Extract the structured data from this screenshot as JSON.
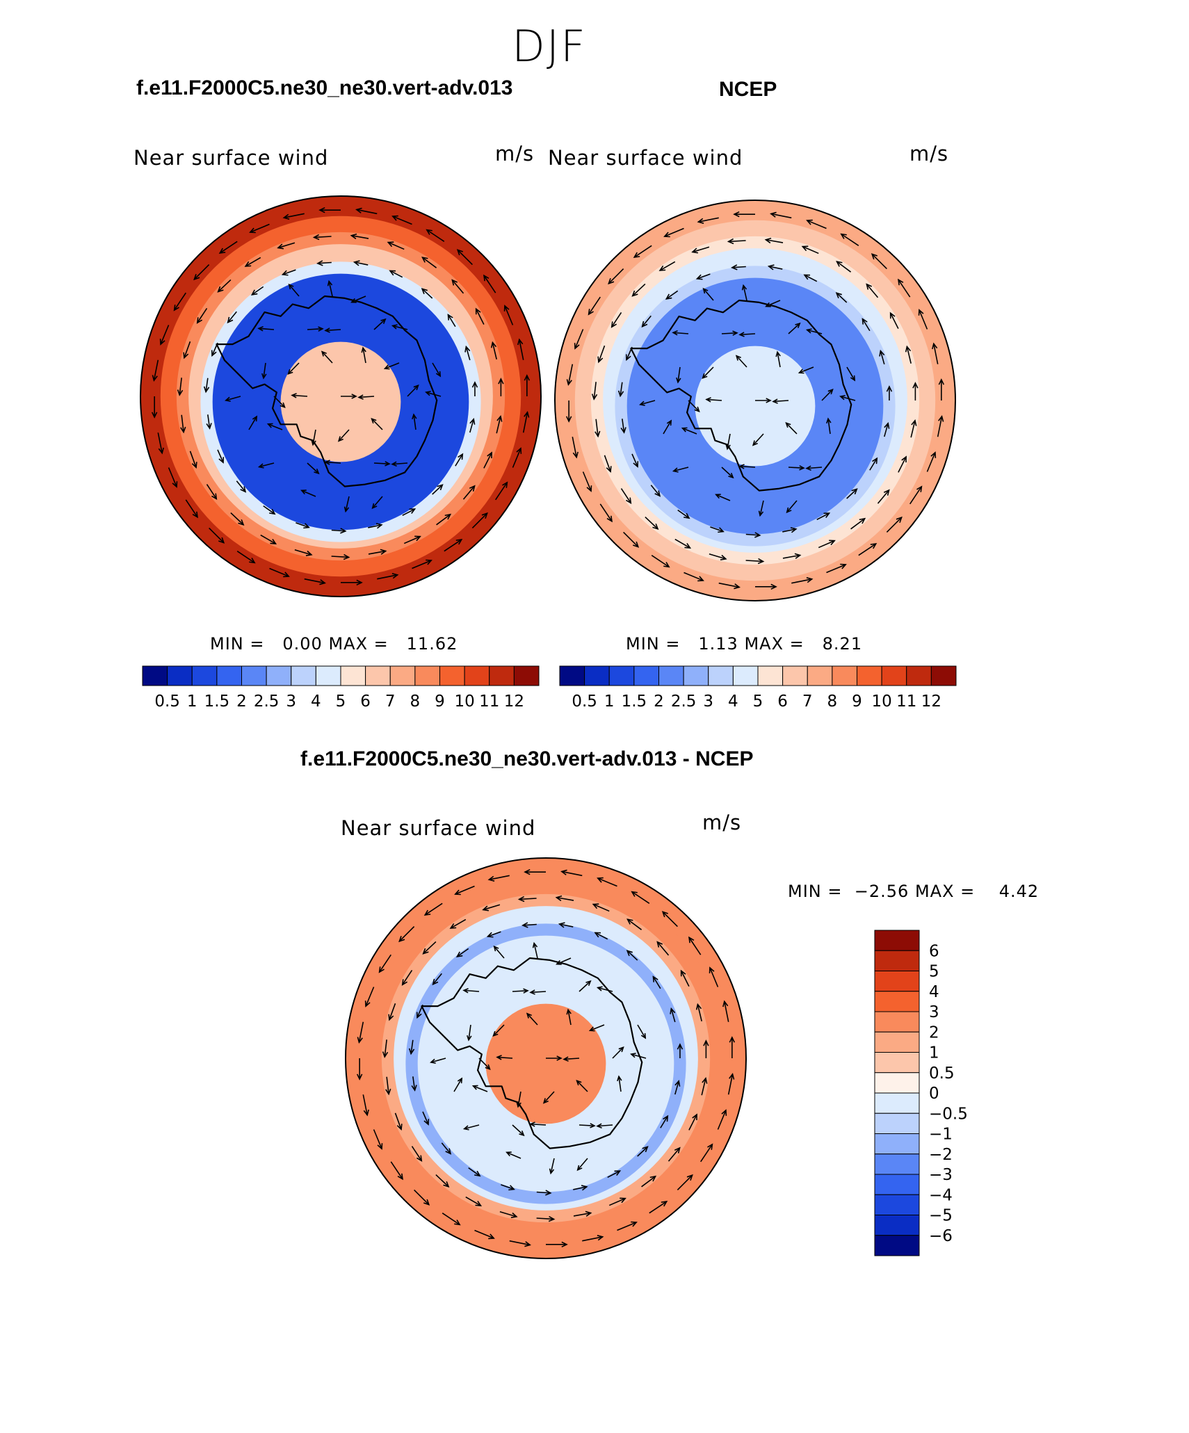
{
  "figure": {
    "suptitle": "DJF"
  },
  "colors": {
    "abs_levels": [
      "#000a84",
      "#0a2dc4",
      "#1c48de",
      "#3464f0",
      "#5a86f6",
      "#8fb0fa",
      "#bcd2fc",
      "#dcebfd",
      "#fde4d4",
      "#fcc6ab",
      "#fbaa84",
      "#f98a5c",
      "#f4622e",
      "#e2431a",
      "#bf2a0e",
      "#8d0c05"
    ],
    "diff_levels": [
      "#000a84",
      "#0a2dc4",
      "#1c48de",
      "#3464f0",
      "#5a86f6",
      "#8fb0fa",
      "#bcd2fc",
      "#dcebfd",
      "#fef2ea",
      "#fcc6ab",
      "#fbaa84",
      "#f98a5c",
      "#f4622e",
      "#e2431a",
      "#bf2a0e",
      "#8d0c05"
    ],
    "land_outline": "#000000"
  },
  "chart_data": [
    {
      "type": "heatmap",
      "title": "f.e11.F2000C5.ne30_ne30.vert-adv.013",
      "variable": "Near surface wind",
      "units": "m/s",
      "min_label": "MIN =",
      "min_value": "0.00",
      "max_label": "MAX =",
      "max_value": "11.62",
      "min": 0.0,
      "max": 11.62,
      "projection": "south polar stereographic",
      "colorbar_ticks": [
        "0.5",
        "1",
        "1.5",
        "2",
        "2.5",
        "3",
        "4",
        "5",
        "6",
        "7",
        "8",
        "9",
        "10",
        "11",
        "12"
      ],
      "rings": [
        11.0,
        9.5,
        8.0,
        6.5,
        4.5,
        1.0,
        6.0
      ]
    },
    {
      "type": "heatmap",
      "title": "NCEP",
      "variable": "Near surface wind",
      "units": "m/s",
      "min_label": "MIN =",
      "min_value": "1.13",
      "max_label": "MAX =",
      "max_value": "8.21",
      "min": 1.13,
      "max": 8.21,
      "projection": "south polar stereographic",
      "colorbar_ticks": [
        "0.5",
        "1",
        "1.5",
        "2",
        "2.5",
        "3",
        "4",
        "5",
        "6",
        "7",
        "8",
        "9",
        "10",
        "11",
        "12"
      ],
      "rings": [
        7.0,
        6.5,
        5.5,
        4.5,
        3.0,
        2.0,
        4.0
      ]
    },
    {
      "type": "heatmap",
      "title": "f.e11.F2000C5.ne30_ne30.vert-adv.013 - NCEP",
      "variable": "Near surface wind",
      "units": "m/s",
      "min_label": "MIN =",
      "min_value": "−2.56",
      "max_label": "MAX =",
      "max_value": "4.42",
      "min": -2.56,
      "max": 4.42,
      "projection": "south polar stereographic",
      "colorbar_ticks": [
        "6",
        "5",
        "4",
        "3",
        "2",
        "1",
        "0.5",
        "0",
        "−0.5",
        "−1",
        "−2",
        "−3",
        "−4",
        "−5",
        "−6"
      ],
      "rings": [
        2.5,
        2.0,
        1.0,
        -0.5,
        -1.5,
        -0.5,
        2.5
      ]
    }
  ]
}
